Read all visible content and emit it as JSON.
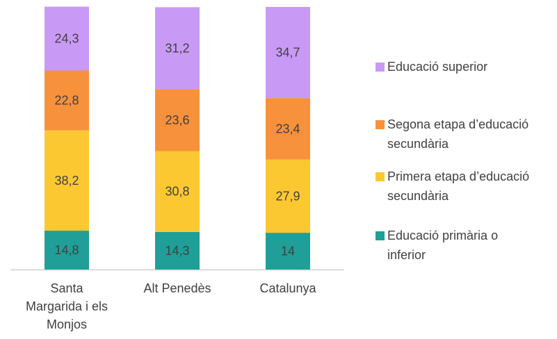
{
  "chart_data": {
    "type": "stacked_bar",
    "categories": [
      "Santa Margarida i els Monjos",
      "Alt Penedès",
      "Catalunya"
    ],
    "series": [
      {
        "name": "Educació primària o inferior",
        "color": "#1f9f97",
        "values": [
          14.8,
          14.3,
          14
        ],
        "value_labels": [
          "14,8",
          "14,3",
          "14"
        ]
      },
      {
        "name": "Primera etapa d’educació secundària",
        "color": "#fcc832",
        "values": [
          38.2,
          30.8,
          27.9
        ],
        "value_labels": [
          "38,2",
          "30,8",
          "27,9"
        ]
      },
      {
        "name": "Segona etapa d’educació secundària",
        "color": "#f7913b",
        "values": [
          22.8,
          23.6,
          23.4
        ],
        "value_labels": [
          "22,8",
          "23,6",
          "23,4"
        ]
      },
      {
        "name": "Educació superior",
        "color": "#c89af6",
        "values": [
          24.3,
          31.2,
          34.7
        ],
        "value_labels": [
          "24,3",
          "31,2",
          "34,7"
        ]
      }
    ]
  }
}
